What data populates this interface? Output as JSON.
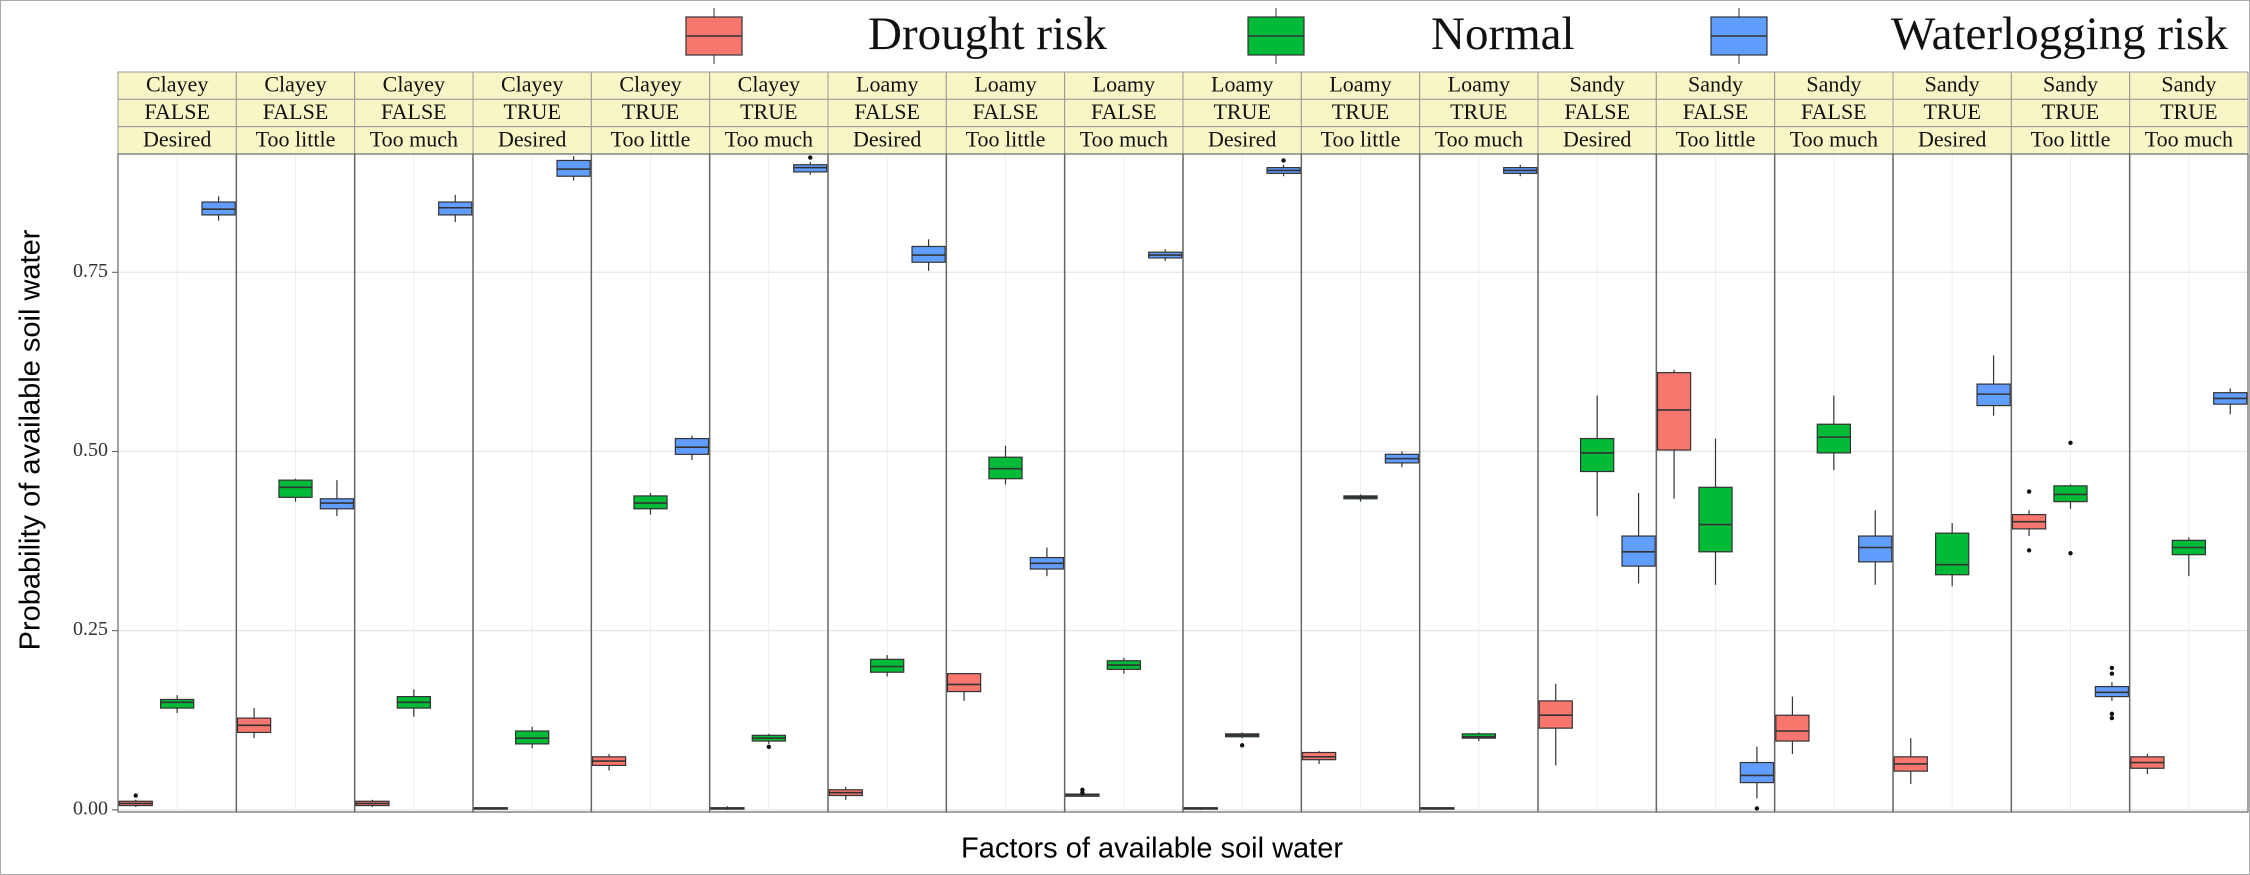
{
  "chart_data": {
    "type": "boxplot",
    "xlabel": "Factors of available soil water",
    "ylabel": "Probability of available soil water",
    "ylim": [
      -0.003,
      0.915
    ],
    "yticks": [
      {
        "value": 0,
        "label": "0.00"
      },
      {
        "value": 0.25,
        "label": "0.25"
      },
      {
        "value": 0.5,
        "label": "0.50"
      },
      {
        "value": 0.75,
        "label": "0.75"
      }
    ],
    "grid": true,
    "legend": "top",
    "facets": [
      [
        "Clayey",
        "FALSE",
        "Desired"
      ],
      [
        "Clayey",
        "FALSE",
        "Too little"
      ],
      [
        "Clayey",
        "FALSE",
        "Too much"
      ],
      [
        "Clayey",
        "TRUE",
        "Desired"
      ],
      [
        "Clayey",
        "TRUE",
        "Too little"
      ],
      [
        "Clayey",
        "TRUE",
        "Too much"
      ],
      [
        "Loamy",
        "FALSE",
        "Desired"
      ],
      [
        "Loamy",
        "FALSE",
        "Too little"
      ],
      [
        "Loamy",
        "FALSE",
        "Too much"
      ],
      [
        "Loamy",
        "TRUE",
        "Desired"
      ],
      [
        "Loamy",
        "TRUE",
        "Too little"
      ],
      [
        "Loamy",
        "TRUE",
        "Too much"
      ],
      [
        "Sandy",
        "FALSE",
        "Desired"
      ],
      [
        "Sandy",
        "FALSE",
        "Too little"
      ],
      [
        "Sandy",
        "FALSE",
        "Too much"
      ],
      [
        "Sandy",
        "TRUE",
        "Desired"
      ],
      [
        "Sandy",
        "TRUE",
        "Too little"
      ],
      [
        "Sandy",
        "TRUE",
        "Too much"
      ]
    ],
    "series": [
      {
        "name": "Drought risk",
        "color": "#F8766D",
        "min": [
          0.004,
          0.1,
          0.004,
          0,
          0.055,
          0,
          0.014,
          0.152,
          0.018,
          0,
          0.064,
          0,
          0.062,
          0.434,
          0.078,
          0.036,
          0.382,
          0.05
        ],
        "q1": [
          0.006,
          0.108,
          0.006,
          0.001,
          0.062,
          0.001,
          0.02,
          0.165,
          0.019,
          0.001,
          0.07,
          0.001,
          0.114,
          0.502,
          0.096,
          0.054,
          0.392,
          0.058
        ],
        "median": [
          0.009,
          0.118,
          0.009,
          0.002,
          0.068,
          0.002,
          0.024,
          0.175,
          0.021,
          0.002,
          0.074,
          0.002,
          0.132,
          0.558,
          0.11,
          0.064,
          0.402,
          0.066
        ],
        "q3": [
          0.012,
          0.128,
          0.012,
          0.003,
          0.074,
          0.003,
          0.028,
          0.19,
          0.022,
          0.003,
          0.08,
          0.003,
          0.152,
          0.61,
          0.132,
          0.074,
          0.412,
          0.074
        ],
        "max": [
          0.014,
          0.142,
          0.014,
          0.004,
          0.078,
          0.005,
          0.032,
          0.19,
          0.023,
          0.004,
          0.082,
          0.004,
          0.176,
          0.614,
          0.158,
          0.1,
          0.418,
          0.078
        ],
        "outliers": [
          [
            0.02
          ],
          [],
          [],
          [],
          [],
          [],
          [],
          [],
          [
            0.028,
            0.024
          ],
          [],
          [],
          [],
          [],
          [],
          [],
          [],
          [
            0.444,
            0.362
          ],
          []
        ]
      },
      {
        "name": "Normal",
        "color": "#00BA38",
        "min": [
          0.135,
          0.43,
          0.13,
          0.086,
          0.412,
          0.092,
          0.186,
          0.454,
          0.19,
          0.1,
          0.43,
          0.096,
          0.41,
          0.314,
          0.474,
          0.312,
          0.42,
          0.326
        ],
        "q1": [
          0.142,
          0.436,
          0.142,
          0.092,
          0.42,
          0.096,
          0.192,
          0.462,
          0.196,
          0.102,
          0.434,
          0.1,
          0.472,
          0.36,
          0.498,
          0.328,
          0.43,
          0.356
        ],
        "median": [
          0.15,
          0.45,
          0.15,
          0.1,
          0.428,
          0.1,
          0.2,
          0.476,
          0.202,
          0.104,
          0.436,
          0.102,
          0.498,
          0.398,
          0.52,
          0.342,
          0.44,
          0.366
        ],
        "q3": [
          0.154,
          0.46,
          0.158,
          0.11,
          0.438,
          0.104,
          0.21,
          0.492,
          0.208,
          0.106,
          0.438,
          0.106,
          0.518,
          0.45,
          0.538,
          0.386,
          0.452,
          0.376
        ],
        "max": [
          0.16,
          0.462,
          0.168,
          0.116,
          0.442,
          0.106,
          0.216,
          0.508,
          0.212,
          0.108,
          0.44,
          0.108,
          0.578,
          0.518,
          0.578,
          0.4,
          0.454,
          0.38
        ],
        "outliers": [
          [],
          [],
          [],
          [],
          [],
          [
            0.088
          ],
          [],
          [],
          [],
          [
            0.09
          ],
          [],
          [],
          [],
          [],
          [],
          [],
          [
            0.512,
            0.358
          ],
          []
        ]
      },
      {
        "name": "Waterlogging risk",
        "color": "#619CFF",
        "min": [
          0.822,
          0.41,
          0.82,
          0.878,
          0.488,
          0.886,
          0.752,
          0.326,
          0.766,
          0.884,
          0.478,
          0.884,
          0.316,
          0.016,
          0.314,
          0.55,
          0.152,
          0.552
        ],
        "q1": [
          0.83,
          0.42,
          0.83,
          0.884,
          0.496,
          0.89,
          0.764,
          0.336,
          0.77,
          0.888,
          0.484,
          0.888,
          0.34,
          0.038,
          0.346,
          0.564,
          0.158,
          0.566
        ],
        "median": [
          0.838,
          0.428,
          0.84,
          0.894,
          0.506,
          0.896,
          0.774,
          0.344,
          0.774,
          0.892,
          0.49,
          0.892,
          0.36,
          0.048,
          0.366,
          0.58,
          0.164,
          0.574
        ],
        "q3": [
          0.848,
          0.434,
          0.848,
          0.906,
          0.518,
          0.9,
          0.786,
          0.352,
          0.778,
          0.896,
          0.496,
          0.896,
          0.382,
          0.066,
          0.382,
          0.594,
          0.172,
          0.582
        ],
        "max": [
          0.856,
          0.46,
          0.858,
          0.912,
          0.522,
          0.904,
          0.796,
          0.366,
          0.782,
          0.9,
          0.5,
          0.9,
          0.442,
          0.088,
          0.418,
          0.634,
          0.178,
          0.588
        ],
        "outliers": [
          [],
          [],
          [],
          [],
          [],
          [
            0.91
          ],
          [],
          [],
          [],
          [
            0.906
          ],
          [],
          [],
          [],
          [
            0.002
          ],
          [],
          [],
          [
            0.198,
            0.19,
            0.134,
            0.128
          ],
          []
        ]
      }
    ]
  }
}
